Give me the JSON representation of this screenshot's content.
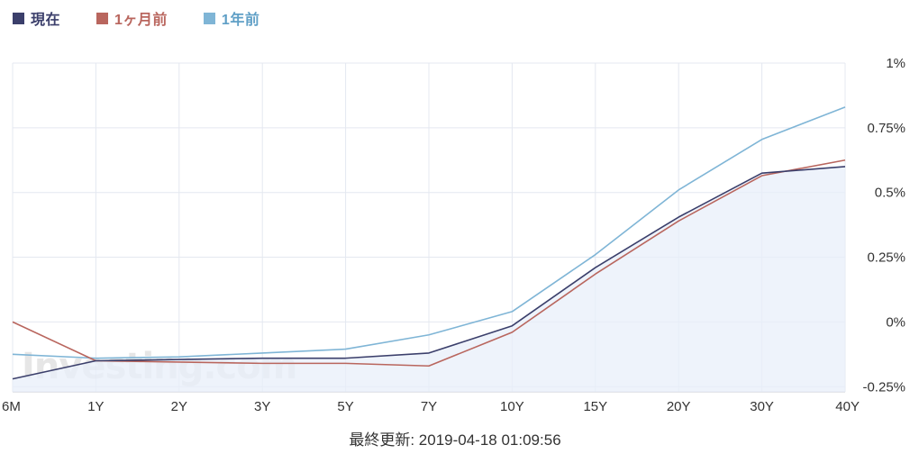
{
  "legend": [
    {
      "label": "現在",
      "color": "#3b3f6b"
    },
    {
      "label": "1ヶ月前",
      "color": "#b9665e"
    },
    {
      "label": "1年前",
      "color": "#7fb5d6"
    }
  ],
  "footer": {
    "label": "最終更新: 2019-04-18 01:09:56"
  },
  "watermark": "Investing.com",
  "chart_data": {
    "type": "line",
    "categories": [
      "6M",
      "1Y",
      "2Y",
      "3Y",
      "5Y",
      "7Y",
      "10Y",
      "15Y",
      "20Y",
      "30Y",
      "40Y"
    ],
    "y_ticks": [
      "1%",
      "0.75%",
      "0.5%",
      "0.25%",
      "0%",
      "-0.25%"
    ],
    "ylim": [
      -0.27,
      1.0
    ],
    "grid": true,
    "series": [
      {
        "name": "現在",
        "color": "#3b3f6b",
        "fill": true,
        "values": [
          -0.22,
          -0.15,
          -0.145,
          -0.14,
          -0.14,
          -0.12,
          -0.015,
          0.21,
          0.405,
          0.575,
          0.6
        ]
      },
      {
        "name": "1ヶ月前",
        "color": "#b9665e",
        "fill": false,
        "values": [
          0.0,
          -0.15,
          -0.155,
          -0.16,
          -0.16,
          -0.17,
          -0.04,
          0.185,
          0.39,
          0.565,
          0.625
        ]
      },
      {
        "name": "1年前",
        "color": "#7fb5d6",
        "fill": false,
        "values": [
          -0.125,
          -0.14,
          -0.135,
          -0.12,
          -0.105,
          -0.05,
          0.04,
          0.26,
          0.51,
          0.705,
          0.83
        ]
      }
    ]
  }
}
